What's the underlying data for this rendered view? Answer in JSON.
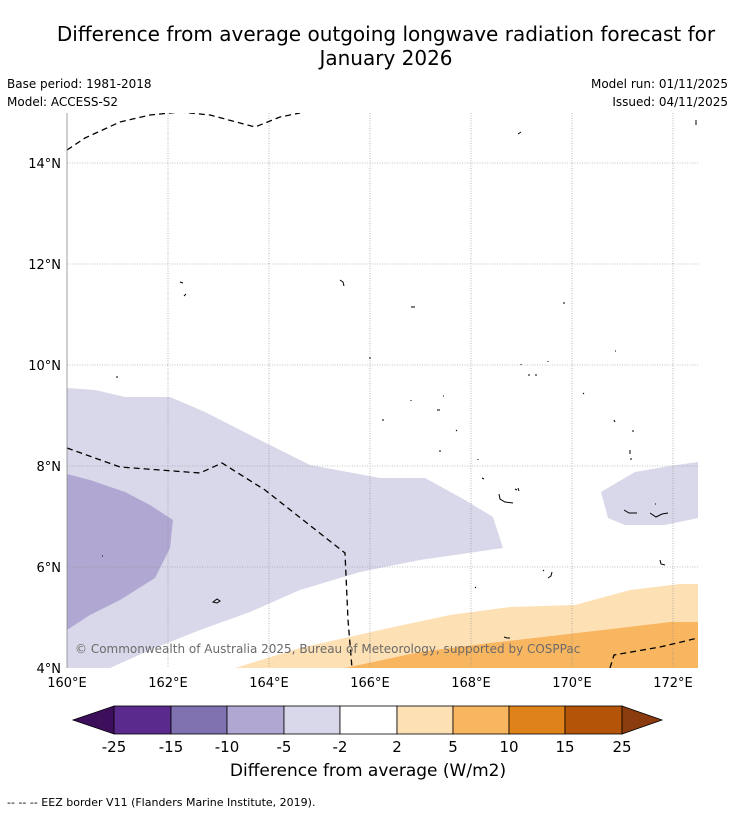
{
  "title_line1": "Difference from average outgoing longwave radiation forecast for",
  "title_line2": "January 2026",
  "base_period": "Base period: 1981-2018",
  "model": "Model: ACCESS-S2",
  "model_run": "Model run: 01/11/2025",
  "issued": "Issued: 04/11/2025",
  "copyright": "© Commonwealth of Australia 2025, Bureau of Meteorology, supported by COSPPac",
  "map": {
    "lon_range": [
      160,
      172.5
    ],
    "lat_range": [
      4,
      15
    ],
    "lon_ticks": [
      "160°E",
      "162°E",
      "164°E",
      "166°E",
      "168°E",
      "170°E",
      "172°E"
    ],
    "lat_ticks": [
      "4°N",
      "6°N",
      "8°N",
      "10°N",
      "12°N",
      "14°N"
    ]
  },
  "colorbar": {
    "labels": [
      "-25",
      "-15",
      "-10",
      "-5",
      "-2",
      "2",
      "5",
      "10",
      "15",
      "25"
    ],
    "colors": [
      "#5a2a8c",
      "#8072b0",
      "#b0a8d2",
      "#d8d8ea",
      "#ffffff",
      "#fde0b4",
      "#f9b660",
      "#e0821a",
      "#b35408"
    ],
    "under_color": "#3c0e5c",
    "over_color": "#8a3c0e",
    "title": "Difference from average (W/m2)"
  },
  "legend_note": "--  --  -- EEZ border V11 (Flanders Marine Institute, 2019)."
}
